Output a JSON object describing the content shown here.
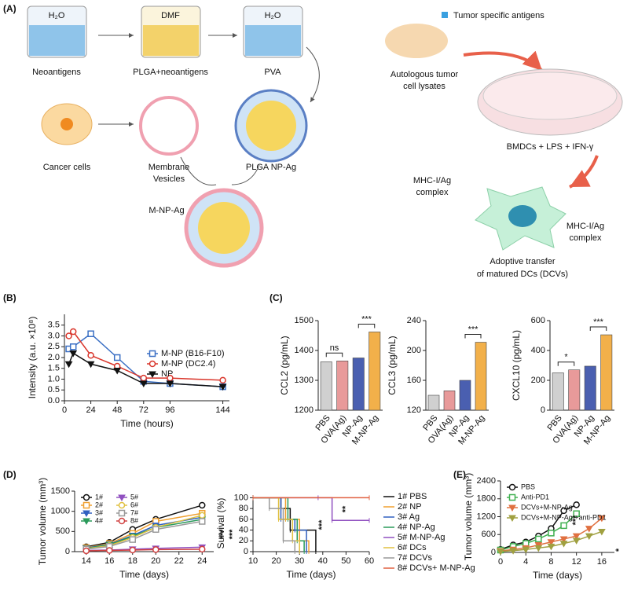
{
  "panels": {
    "a": "(A)",
    "b": "(B)",
    "c": "(C)",
    "d": "(D)",
    "e": "(E)"
  },
  "diagram": {
    "beaker1": "H₂O",
    "beaker2": "DMF",
    "beaker3": "H₂O",
    "neoantigens": "Neoantigens",
    "plga_neo": "PLGA+neoantigens",
    "pva": "PVA",
    "cancer": "Cancer cells",
    "membrane": [
      "Membrane",
      "Vesicles"
    ],
    "plga_np": "PLGA NP-Ag",
    "mnp": "M-NP-Ag",
    "tsa": "Tumor specific antigens",
    "lysates": [
      "Autologous tumor",
      "cell lysates"
    ],
    "bmdc": "BMDCs + LPS + IFN-γ",
    "mhc1": [
      "MHC-I/Ag",
      "complex"
    ],
    "mhc2": [
      "MHC-I/Ag",
      "complex"
    ],
    "adoptive": [
      "Adoptive transfer",
      "of matured DCs (DCVs)"
    ]
  },
  "chart_data": [
    {
      "type": "line",
      "xlabel": "Time (hours)",
      "ylabel": "Intensity (a.u. ×10⁸)",
      "x": [
        4,
        8,
        24,
        48,
        72,
        96,
        144
      ],
      "xlim": [
        0,
        150
      ],
      "xticks": [
        0,
        24,
        48,
        72,
        96,
        144
      ],
      "ylim": [
        0,
        4
      ],
      "yticks": [
        {
          "value": 0,
          "label": "0.0"
        },
        0.5,
        {
          "value": 1,
          "label": "1.0"
        },
        1.5,
        {
          "value": 2,
          "label": "2.0"
        },
        2.5,
        {
          "value": 3,
          "label": "3.0"
        },
        3.5
      ],
      "legend": "center right",
      "series": [
        {
          "name": "M-NP (B16-F10)",
          "color": "#3a6fc4",
          "marker": "square",
          "values": [
            2.4,
            2.5,
            3.1,
            2.0,
            0.9,
            0.8,
            0.65
          ]
        },
        {
          "name": "M-NP (DC2.4)",
          "color": "#d9352b",
          "marker": "circle",
          "values": [
            3.0,
            3.2,
            2.1,
            1.6,
            1.05,
            1.05,
            0.95
          ]
        },
        {
          "name": "NP",
          "color": "#111111",
          "marker": "triangle",
          "values": [
            1.7,
            2.2,
            1.7,
            1.4,
            0.8,
            0.8,
            0.65
          ]
        }
      ]
    },
    {
      "type": "bar",
      "ylabel": "CCL2 (pg/mL)",
      "categories": [
        "PBS",
        "OVA(Ag)",
        "NP-Ag",
        "M-NP-Ag"
      ],
      "values": [
        1362,
        1365,
        1375,
        1462
      ],
      "colors": [
        "#d0d0d0",
        "#e89a9a",
        "#4a5fb0",
        "#f2b04a"
      ],
      "ylim": [
        1200,
        1500
      ],
      "yticks": [
        1200,
        1300,
        1400,
        1500
      ],
      "annotations": [
        "ns",
        "***"
      ]
    },
    {
      "type": "bar",
      "ylabel": "CCL3 (pg/mL)",
      "categories": [
        "PBS",
        "OVA(Ag)",
        "NP-Ag",
        "M-NP-Ag"
      ],
      "values": [
        140,
        146,
        160,
        211
      ],
      "colors": [
        "#d0d0d0",
        "#e89a9a",
        "#4a5fb0",
        "#f2b04a"
      ],
      "ylim": [
        120,
        240
      ],
      "yticks": [
        120,
        160,
        200,
        240
      ],
      "annotations": [
        "***"
      ]
    },
    {
      "type": "bar",
      "ylabel": "CXCL10 (pg/mL)",
      "categories": [
        "PBS",
        "OVA(Ag)",
        "NP-Ag",
        "M-NP-Ag"
      ],
      "values": [
        250,
        270,
        295,
        505
      ],
      "colors": [
        "#d0d0d0",
        "#e89a9a",
        "#4a5fb0",
        "#f2b04a"
      ],
      "ylim": [
        0,
        600
      ],
      "yticks": [
        0,
        200,
        400,
        600
      ],
      "annotations": [
        "*",
        "***"
      ]
    },
    {
      "type": "line",
      "xlabel": "Time (days)",
      "ylabel": "Tumor volume (mm³)",
      "x": [
        14,
        16,
        18,
        20,
        24
      ],
      "xlim": [
        13,
        25
      ],
      "xticks": [
        14,
        16,
        18,
        20,
        22,
        24
      ],
      "ylim": [
        0,
        1500
      ],
      "yticks": [
        0,
        500,
        1000,
        1500
      ],
      "legend": "upper left",
      "annotations": [
        "***",
        "***"
      ],
      "series": [
        {
          "name": "1#",
          "color": "#111111",
          "marker": "circle",
          "values": [
            120,
            230,
            550,
            800,
            1150
          ]
        },
        {
          "name": "2#",
          "color": "#f0a030",
          "marker": "square",
          "values": [
            100,
            200,
            450,
            750,
            950
          ]
        },
        {
          "name": "3#",
          "color": "#3060c0",
          "marker": "triangle",
          "values": [
            90,
            180,
            400,
            650,
            850
          ]
        },
        {
          "name": "4#",
          "color": "#2a9a5a",
          "marker": "triangle",
          "values": [
            80,
            170,
            380,
            600,
            800
          ]
        },
        {
          "name": "5#",
          "color": "#9050c0",
          "marker": "triangle",
          "values": [
            30,
            40,
            60,
            80,
            110
          ]
        },
        {
          "name": "6#",
          "color": "#e0c040",
          "marker": "circle",
          "values": [
            70,
            150,
            350,
            600,
            900
          ]
        },
        {
          "name": "7#",
          "color": "#999999",
          "marker": "square",
          "values": [
            60,
            130,
            300,
            550,
            750
          ]
        },
        {
          "name": "8#",
          "color": "#d04040",
          "marker": "circle",
          "values": [
            20,
            30,
            40,
            50,
            60
          ]
        }
      ]
    },
    {
      "type": "step",
      "xlabel": "Time (days)",
      "ylabel": "Survival (%)",
      "xlim": [
        10,
        60
      ],
      "xticks": [
        10,
        20,
        30,
        40,
        50,
        60
      ],
      "ylim": [
        0,
        105
      ],
      "yticks": [
        0,
        20,
        40,
        60,
        80,
        100
      ],
      "legend": "outside right",
      "annotations": [
        "***",
        "**"
      ],
      "series": [
        {
          "name": "1# PBS",
          "color": "#111111",
          "x": [
            10,
            22,
            26,
            37
          ],
          "values": [
            100,
            80,
            40,
            0
          ]
        },
        {
          "name": "2# NP",
          "color": "#f0a030",
          "x": [
            10,
            24,
            30,
            34
          ],
          "values": [
            100,
            60,
            20,
            0
          ]
        },
        {
          "name": "3# Ag",
          "color": "#3060c0",
          "x": [
            10,
            22,
            28,
            33
          ],
          "values": [
            100,
            60,
            40,
            0
          ]
        },
        {
          "name": "4# NP-Ag",
          "color": "#2a9a5a",
          "x": [
            10,
            25,
            29,
            32
          ],
          "values": [
            100,
            60,
            20,
            0
          ]
        },
        {
          "name": "5# M-NP-Ag",
          "color": "#9050c0",
          "x": [
            10,
            38,
            44,
            60
          ],
          "values": [
            100,
            100,
            58,
            58
          ]
        },
        {
          "name": "6# DCs",
          "color": "#e0c040",
          "x": [
            10,
            21,
            27,
            30
          ],
          "values": [
            100,
            60,
            20,
            0
          ]
        },
        {
          "name": "7# DCVs",
          "color": "#999999",
          "x": [
            10,
            17,
            23,
            28
          ],
          "values": [
            100,
            80,
            20,
            0
          ]
        },
        {
          "name": "8# DCVs+ M-NP-Ag",
          "color": "#e06040",
          "x": [
            10,
            60
          ],
          "values": [
            100,
            100
          ]
        }
      ]
    },
    {
      "type": "line",
      "xlabel": "Time (days)",
      "ylabel": "Tumor volume (mm³)",
      "xlim": [
        0,
        18
      ],
      "xticks": [
        0,
        4,
        8,
        12,
        16
      ],
      "ylim": [
        0,
        2400
      ],
      "yticks": [
        0,
        600,
        1200,
        1800,
        2400
      ],
      "legend": "upper left",
      "annotations": [
        "***",
        "*"
      ],
      "series": [
        {
          "name": "PBS",
          "color": "#111111",
          "marker": "circle",
          "x": [
            0,
            2,
            4,
            6,
            8,
            10,
            12
          ],
          "values": [
            100,
            250,
            350,
            550,
            800,
            1400,
            1600
          ]
        },
        {
          "name": "Anti-PD1",
          "color": "#40b050",
          "marker": "square",
          "x": [
            0,
            2,
            4,
            6,
            8,
            10,
            12
          ],
          "values": [
            80,
            200,
            300,
            450,
            650,
            900,
            1300
          ]
        },
        {
          "name": "DCVs+M-NP-Ag",
          "color": "#e07040",
          "marker": "triangle",
          "x": [
            0,
            2,
            4,
            6,
            8,
            10,
            12,
            14,
            16
          ],
          "values": [
            50,
            100,
            150,
            250,
            350,
            450,
            550,
            800,
            1150
          ]
        },
        {
          "name": "DCVs+M-NP-Ag +anti-PD1",
          "color": "#a0a040",
          "marker": "triangle",
          "x": [
            0,
            2,
            4,
            6,
            8,
            10,
            12,
            14,
            16
          ],
          "values": [
            30,
            60,
            100,
            150,
            200,
            300,
            400,
            550,
            700
          ]
        }
      ]
    }
  ]
}
